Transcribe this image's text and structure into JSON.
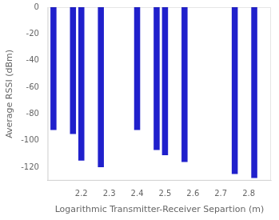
{
  "chart_data": {
    "type": "bar",
    "x": [
      2.1,
      2.17,
      2.2,
      2.27,
      2.4,
      2.47,
      2.5,
      2.57,
      2.75,
      2.82
    ],
    "values": [
      -92,
      -95,
      -115,
      -120,
      -92,
      -107,
      -111,
      -116,
      -125,
      -128
    ],
    "color": "#2020cc",
    "xlim": [
      2.08,
      2.88
    ],
    "ylim": [
      -130,
      0
    ],
    "xticks": [
      2.2,
      2.3,
      2.4,
      2.5,
      2.6,
      2.7,
      2.8
    ],
    "yticks": [
      0,
      -20,
      -40,
      -60,
      -80,
      -100,
      -120
    ],
    "xlabel": "Logarithmic Transmitter-Receiver Separtion (m)",
    "ylabel": "Average RSSI (dBm)",
    "grid": false
  }
}
